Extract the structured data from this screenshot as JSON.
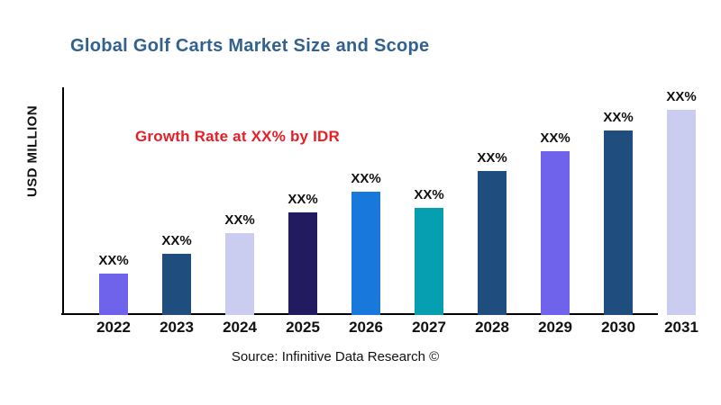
{
  "header": {
    "title": "Global Golf Carts Market Size and Scope"
  },
  "footer": {
    "source": "Source: Infinitive Data Research ©"
  },
  "colors": {
    "title": "#31618F",
    "annotation": "#E81E25",
    "axis": "#000000",
    "label": "#111111",
    "background": "#FFFFFF"
  },
  "chart_data": {
    "type": "bar",
    "title": "Global Golf Carts Market Size and Scope",
    "annotation": "Growth Rate at XX% by IDR",
    "xlabel": "",
    "ylabel": "USD MILLION",
    "categories": [
      "2022",
      "2023",
      "2024",
      "2025",
      "2026",
      "2027",
      "2028",
      "2029",
      "2030",
      "2031"
    ],
    "values": [
      20,
      30,
      40,
      50,
      60,
      52,
      70,
      80,
      90,
      100
    ],
    "values_unit": "percent of tallest bar (actual magnitudes shown only as XX% placeholders)",
    "bar_labels": [
      "XX%",
      "XX%",
      "XX%",
      "XX%",
      "XX%",
      "XX%",
      "XX%",
      "XX%",
      "XX%",
      "XX%"
    ],
    "bar_colors": [
      "#6E63EA",
      "#1F4E7E",
      "#CACDF0",
      "#221B60",
      "#1878DC",
      "#069FB2",
      "#1F4E7E",
      "#6E63EA",
      "#1F4E7E",
      "#CACDF0"
    ],
    "ylim": [
      0,
      100
    ],
    "grid": false,
    "legend": false
  }
}
